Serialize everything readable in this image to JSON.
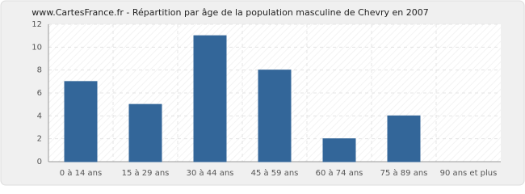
{
  "chart_data": {
    "type": "bar",
    "title": "www.CartesFrance.fr - Répartition par âge de la population masculine de Chevry en 2007",
    "categories": [
      "0 à 14 ans",
      "15 à 29 ans",
      "30 à 44 ans",
      "45 à 59 ans",
      "60 à 74 ans",
      "75 à 89 ans",
      "90 ans et plus"
    ],
    "values": [
      7,
      5,
      11,
      8,
      2,
      4,
      0
    ],
    "color": "#336699",
    "ylim": [
      0,
      12
    ],
    "yticks": [
      0,
      2,
      4,
      6,
      8,
      10,
      12
    ],
    "grid": true
  }
}
